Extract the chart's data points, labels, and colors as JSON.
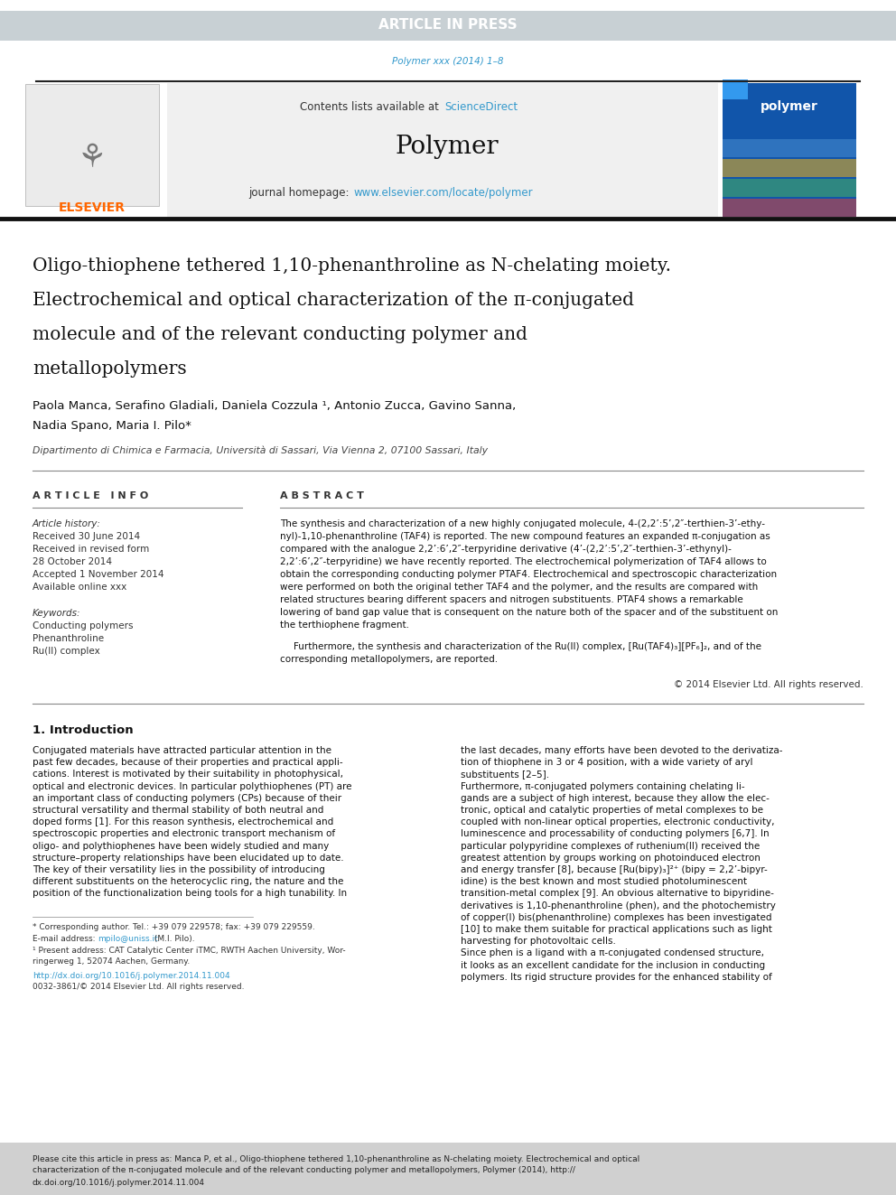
{
  "page_width": 9.92,
  "page_height": 13.23,
  "bg_color": "#ffffff",
  "header_bar_color": "#c8d0d4",
  "header_bar_text": "ARTICLE IN PRESS",
  "header_bar_text_color": "#ffffff",
  "journal_ref_text": "Polymer xxx (2014) 1–8",
  "journal_ref_color": "#3399cc",
  "journal_name": "Polymer",
  "journal_homepage": "www.elsevier.com/locate/polymer",
  "contents_text": "Contents lists available at ",
  "sciencedirect_text": "ScienceDirect",
  "link_color": "#3399cc",
  "elsevier_color": "#ff6600",
  "article_title_line1": "Oligo-thiophene tethered 1,10-phenanthroline as N-chelating moiety.",
  "article_title_line2": "Electrochemical and optical characterization of the π-conjugated",
  "article_title_line3": "molecule and of the relevant conducting polymer and",
  "article_title_line4": "metallopolymers",
  "authors": "Paola Manca, Serafino Gladiali, Daniela Cozzula ¹, Antonio Zucca, Gavino Sanna,",
  "authors2": "Nadia Spano, Maria I. Pilo*",
  "affiliation": "Dipartimento di Chimica e Farmacia, Università di Sassari, Via Vienna 2, 07100 Sassari, Italy",
  "article_info_header": "A R T I C L E   I N F O",
  "abstract_header": "A B S T R A C T",
  "article_history_label": "Article history:",
  "received1": "Received 30 June 2014",
  "received2": "Received in revised form",
  "received2b": "28 October 2014",
  "accepted": "Accepted 1 November 2014",
  "available": "Available online xxx",
  "keywords_header": "Keywords:",
  "kw1": "Conducting polymers",
  "kw2": "Phenanthroline",
  "kw3": "Ru(II) complex",
  "abstract_text1": "The synthesis and characterization of a new highly conjugated molecule, 4-(2,2’:5’,2″-terthien-3’-ethy-",
  "abstract_text2": "nyl)-1,10-phenanthroline (TAF4) is reported. The new compound features an expanded π-conjugation as",
  "abstract_text3": "compared with the analogue 2,2’:6’,2″-terpyridine derivative (4’-(2,2’:5’,2″-terthien-3’-ethynyl)-",
  "abstract_text4": "2,2’:6’,2″-terpyridine) we have recently reported. The electrochemical polymerization of TAF4 allows to",
  "abstract_text5": "obtain the corresponding conducting polymer PTAF4. Electrochemical and spectroscopic characterization",
  "abstract_text6": "were performed on both the original tether TAF4 and the polymer, and the results are compared with",
  "abstract_text7": "related structures bearing different spacers and nitrogen substituents. PTAF4 shows a remarkable",
  "abstract_text8": "lowering of band gap value that is consequent on the nature both of the spacer and of the substituent on",
  "abstract_text9": "the terthiophene fragment.",
  "abstract_text10": "Furthermore, the synthesis and characterization of the Ru(II) complex, [Ru(TAF4)₃][PF₆]₂, and of the",
  "abstract_text11": "corresponding metallopolymers, are reported.",
  "copyright_text": "© 2014 Elsevier Ltd. All rights reserved.",
  "intro_header": "1. Introduction",
  "intro_col1_lines": [
    "Conjugated materials have attracted particular attention in the",
    "past few decades, because of their properties and practical appli-",
    "cations. Interest is motivated by their suitability in photophysical,",
    "optical and electronic devices. In particular polythiophenes (PT) are",
    "an important class of conducting polymers (CPs) because of their",
    "structural versatility and thermal stability of both neutral and",
    "doped forms [1]. For this reason synthesis, electrochemical and",
    "spectroscopic properties and electronic transport mechanism of",
    "oligo- and polythiophenes have been widely studied and many",
    "structure–property relationships have been elucidated up to date.",
    "The key of their versatility lies in the possibility of introducing",
    "different substituents on the heterocyclic ring, the nature and the",
    "position of the functionalization being tools for a high tunability. In"
  ],
  "intro_col2_lines": [
    "the last decades, many efforts have been devoted to the derivatiza-",
    "tion of thiophene in 3 or 4 position, with a wide variety of aryl",
    "substituents [2–5].",
    "Furthermore, π-conjugated polymers containing chelating li-",
    "gands are a subject of high interest, because they allow the elec-",
    "tronic, optical and catalytic properties of metal complexes to be",
    "coupled with non-linear optical properties, electronic conductivity,",
    "luminescence and processability of conducting polymers [6,7]. In",
    "particular polypyridine complexes of ruthenium(II) received the",
    "greatest attention by groups working on photoinduced electron",
    "and energy transfer [8], because [Ru(bipy)₃]²⁺ (bipy = 2,2’-bipyr-",
    "idine) is the best known and most studied photoluminescent",
    "transition-metal complex [9]. An obvious alternative to bipyridine-",
    "derivatives is 1,10-phenanthroline (phen), and the photochemistry",
    "of copper(I) bis(phenanthroline) complexes has been investigated",
    "[10] to make them suitable for practical applications such as light",
    "harvesting for photovoltaic cells.",
    "Since phen is a ligand with a π-conjugated condensed structure,",
    "it looks as an excellent candidate for the inclusion in conducting",
    "polymers. Its rigid structure provides for the enhanced stability of"
  ],
  "footnote_star": "* Corresponding author. Tel.: +39 079 229578; fax: +39 079 229559.",
  "footnote_email_label": "E-mail address: ",
  "footnote_email": "mpilo@uniss.it",
  "footnote_email_name": " (M.I. Pilo).",
  "footnote_1": "¹ Present address: CAT Catalytic Center iTMC, RWTH Aachen University, Wor-",
  "footnote_1b": "ringerweg 1, 52074 Aachen, Germany.",
  "doi_text": "http://dx.doi.org/10.1016/j.polymer.2014.11.004",
  "issn_text": "0032-3861/© 2014 Elsevier Ltd. All rights reserved.",
  "bottom_citation": "Please cite this article in press as: Manca P, et al., Oligo-thiophene tethered 1,10-phenanthroline as N-chelating moiety. Electrochemical and optical characterization of the π-conjugated molecule and of the relevant conducting polymer and metallopolymers, Polymer (2014), http://dx.doi.org/10.1016/j.polymer.2014.11.004",
  "bottom_bar_color": "#d0d0d0"
}
